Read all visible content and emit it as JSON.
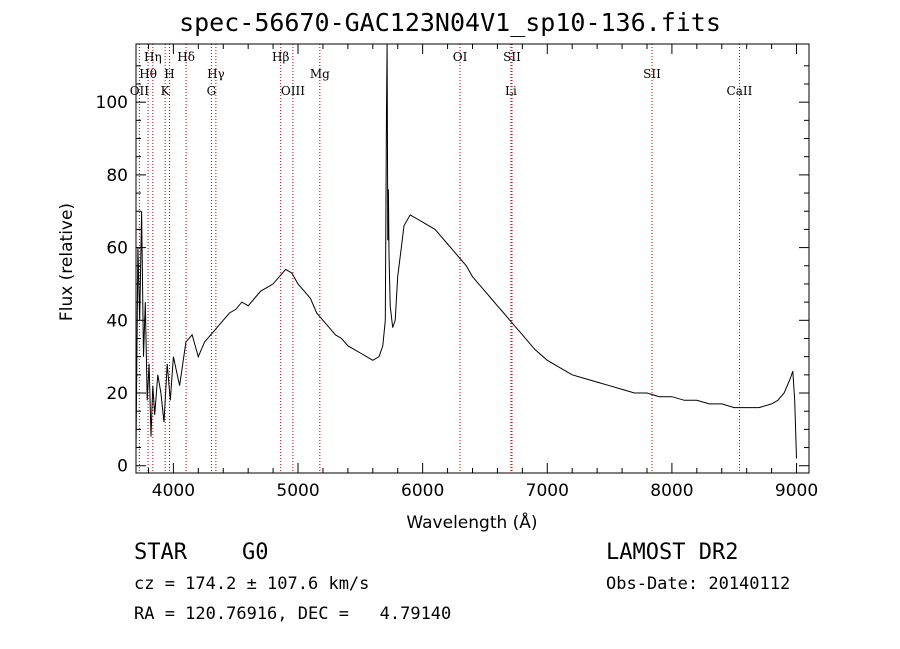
{
  "title": "spec-56670-GAC123N04V1_sp10-136.fits",
  "info": {
    "class": "STAR",
    "subclass": "G0",
    "survey": "LAMOST DR2",
    "cz": "cz = 174.2 ± 107.6 km/s",
    "obs_date": "Obs-Date: 20140112",
    "radec": "RA = 120.76916, DEC =   4.79140"
  },
  "colors": {
    "spectrum": "#000000",
    "line_marker": "#c00000"
  },
  "chart_data": {
    "type": "line",
    "xlabel": "Wavelength (Å)",
    "ylabel": "Flux (relative)",
    "xlim": [
      3700,
      9100
    ],
    "ylim": [
      -2,
      116
    ],
    "xticks": [
      4000,
      5000,
      6000,
      7000,
      8000,
      9000
    ],
    "yticks": [
      0,
      20,
      40,
      60,
      80,
      100
    ],
    "grid": false,
    "lines": [
      {
        "label": "Hη",
        "wavelength": 3835,
        "row": 0
      },
      {
        "label": "Hθ",
        "wavelength": 3797,
        "row": 1
      },
      {
        "label": "OII",
        "wavelength": 3727,
        "row": 2
      },
      {
        "label": "H",
        "wavelength": 3969,
        "row": 1
      },
      {
        "label": "K",
        "wavelength": 3934,
        "row": 2
      },
      {
        "label": "Hδ",
        "wavelength": 4102,
        "row": 0
      },
      {
        "label": "Hγ",
        "wavelength": 4341,
        "row": 1
      },
      {
        "label": "G",
        "wavelength": 4305,
        "row": 2
      },
      {
        "label": "Hβ",
        "wavelength": 4861,
        "row": 0
      },
      {
        "label": "OIII",
        "wavelength": 4959,
        "row": 2
      },
      {
        "label": "Mg",
        "wavelength": 5175,
        "row": 1
      },
      {
        "label": "OI",
        "wavelength": 6300,
        "row": 0
      },
      {
        "label": "SII",
        "wavelength": 6717,
        "row": 0
      },
      {
        "label": "Li",
        "wavelength": 6708,
        "row": 2
      },
      {
        "label": "SII",
        "wavelength": 7840,
        "row": 1
      },
      {
        "label": "CaII",
        "wavelength": 8542,
        "row": 2
      }
    ],
    "series": [
      {
        "x": [
          3700,
          3715,
          3730,
          3745,
          3760,
          3775,
          3790,
          3805,
          3820,
          3835,
          3850,
          3875,
          3900,
          3925,
          3950,
          3975,
          4000,
          4050,
          4100,
          4150,
          4200,
          4250,
          4300,
          4350,
          4400,
          4450,
          4500,
          4550,
          4600,
          4650,
          4700,
          4750,
          4800,
          4850,
          4900,
          4950,
          5000,
          5050,
          5100,
          5150,
          5200,
          5250,
          5300,
          5350,
          5400,
          5450,
          5500,
          5550,
          5600,
          5650,
          5680,
          5700,
          5710,
          5715,
          5720,
          5725,
          5730,
          5740,
          5760,
          5780,
          5800,
          5850,
          5900,
          5950,
          6000,
          6050,
          6100,
          6150,
          6200,
          6250,
          6300,
          6350,
          6400,
          6450,
          6500,
          6550,
          6600,
          6650,
          6700,
          6750,
          6800,
          6900,
          7000,
          7100,
          7200,
          7300,
          7400,
          7500,
          7600,
          7700,
          7800,
          7900,
          8000,
          8100,
          8200,
          8300,
          8400,
          8500,
          8600,
          8700,
          8800,
          8850,
          8900,
          8950,
          8970,
          8985,
          9000
        ],
        "y": [
          4,
          60,
          40,
          70,
          30,
          45,
          18,
          28,
          8,
          22,
          14,
          25,
          20,
          12,
          28,
          18,
          30,
          22,
          34,
          36,
          30,
          34,
          36,
          38,
          40,
          42,
          43,
          45,
          44,
          46,
          48,
          49,
          50,
          52,
          54,
          53,
          50,
          48,
          46,
          42,
          40,
          38,
          36,
          35,
          33,
          32,
          31,
          30,
          29,
          30,
          33,
          40,
          98,
          118,
          62,
          76,
          58,
          44,
          38,
          40,
          52,
          66,
          69,
          68,
          67,
          66,
          65,
          63,
          61,
          59,
          57,
          55,
          52,
          50,
          48,
          46,
          44,
          42,
          40,
          38,
          36,
          32,
          29,
          27,
          25,
          24,
          23,
          22,
          21,
          20,
          20,
          19,
          19,
          18,
          18,
          17,
          17,
          16,
          16,
          16,
          17,
          18,
          20,
          24,
          26,
          18,
          2
        ]
      }
    ]
  }
}
